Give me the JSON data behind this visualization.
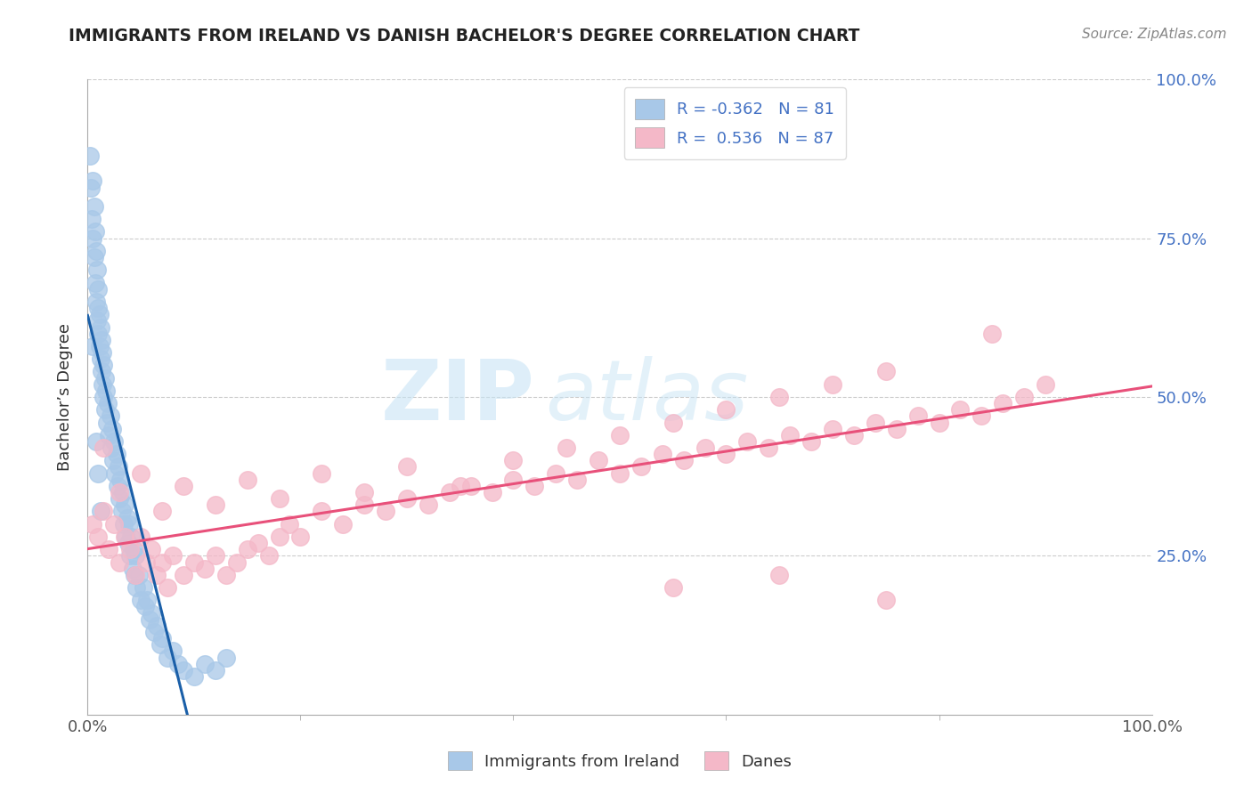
{
  "title": "IMMIGRANTS FROM IRELAND VS DANISH BACHELOR'S DEGREE CORRELATION CHART",
  "source_text": "Source: ZipAtlas.com",
  "ylabel": "Bachelor’s Degree",
  "watermark_zip": "ZIP",
  "watermark_atlas": "atlas",
  "blue_r": -0.362,
  "blue_n": 81,
  "pink_r": 0.536,
  "pink_n": 87,
  "blue_color": "#a8c8e8",
  "pink_color": "#f4b8c8",
  "blue_line_color": "#1a5fa8",
  "pink_line_color": "#e8507a",
  "background_color": "#ffffff",
  "grid_color": "#cccccc",
  "legend_text_color": "#4472c4",
  "source_color": "#888888",
  "title_color": "#222222",
  "bottom_legend_label1": "Immigrants from Ireland",
  "bottom_legend_label2": "Danes",
  "blue_scatter_x": [
    0.002,
    0.003,
    0.004,
    0.005,
    0.005,
    0.006,
    0.006,
    0.007,
    0.007,
    0.008,
    0.008,
    0.009,
    0.009,
    0.01,
    0.01,
    0.01,
    0.011,
    0.011,
    0.012,
    0.012,
    0.013,
    0.013,
    0.014,
    0.014,
    0.015,
    0.015,
    0.016,
    0.016,
    0.017,
    0.018,
    0.019,
    0.02,
    0.021,
    0.022,
    0.023,
    0.024,
    0.025,
    0.026,
    0.027,
    0.028,
    0.029,
    0.03,
    0.031,
    0.032,
    0.033,
    0.034,
    0.035,
    0.036,
    0.037,
    0.038,
    0.039,
    0.04,
    0.041,
    0.042,
    0.043,
    0.044,
    0.045,
    0.046,
    0.048,
    0.05,
    0.052,
    0.054,
    0.056,
    0.058,
    0.06,
    0.062,
    0.065,
    0.068,
    0.07,
    0.075,
    0.08,
    0.085,
    0.09,
    0.1,
    0.11,
    0.12,
    0.13,
    0.005,
    0.008,
    0.01,
    0.012
  ],
  "blue_scatter_y": [
    0.88,
    0.83,
    0.78,
    0.84,
    0.75,
    0.8,
    0.72,
    0.76,
    0.68,
    0.73,
    0.65,
    0.7,
    0.62,
    0.67,
    0.64,
    0.6,
    0.63,
    0.58,
    0.61,
    0.56,
    0.59,
    0.54,
    0.57,
    0.52,
    0.55,
    0.5,
    0.53,
    0.48,
    0.51,
    0.46,
    0.49,
    0.44,
    0.47,
    0.42,
    0.45,
    0.4,
    0.43,
    0.38,
    0.41,
    0.36,
    0.39,
    0.34,
    0.37,
    0.32,
    0.35,
    0.3,
    0.33,
    0.28,
    0.31,
    0.27,
    0.3,
    0.25,
    0.28,
    0.23,
    0.26,
    0.22,
    0.25,
    0.2,
    0.22,
    0.18,
    0.2,
    0.17,
    0.18,
    0.15,
    0.16,
    0.13,
    0.14,
    0.11,
    0.12,
    0.09,
    0.1,
    0.08,
    0.07,
    0.06,
    0.08,
    0.07,
    0.09,
    0.58,
    0.43,
    0.38,
    0.32
  ],
  "pink_scatter_x": [
    0.005,
    0.01,
    0.015,
    0.02,
    0.025,
    0.03,
    0.035,
    0.04,
    0.045,
    0.05,
    0.055,
    0.06,
    0.065,
    0.07,
    0.075,
    0.08,
    0.09,
    0.1,
    0.11,
    0.12,
    0.13,
    0.14,
    0.15,
    0.16,
    0.17,
    0.18,
    0.19,
    0.2,
    0.22,
    0.24,
    0.26,
    0.28,
    0.3,
    0.32,
    0.34,
    0.36,
    0.38,
    0.4,
    0.42,
    0.44,
    0.46,
    0.48,
    0.5,
    0.52,
    0.54,
    0.56,
    0.58,
    0.6,
    0.62,
    0.64,
    0.66,
    0.68,
    0.7,
    0.72,
    0.74,
    0.76,
    0.78,
    0.8,
    0.82,
    0.84,
    0.86,
    0.88,
    0.9,
    0.015,
    0.03,
    0.05,
    0.07,
    0.09,
    0.12,
    0.15,
    0.18,
    0.22,
    0.26,
    0.3,
    0.35,
    0.4,
    0.45,
    0.5,
    0.55,
    0.6,
    0.65,
    0.7,
    0.75,
    0.55,
    0.65,
    0.75,
    0.85
  ],
  "pink_scatter_y": [
    0.3,
    0.28,
    0.32,
    0.26,
    0.3,
    0.24,
    0.28,
    0.26,
    0.22,
    0.28,
    0.24,
    0.26,
    0.22,
    0.24,
    0.2,
    0.25,
    0.22,
    0.24,
    0.23,
    0.25,
    0.22,
    0.24,
    0.26,
    0.27,
    0.25,
    0.28,
    0.3,
    0.28,
    0.32,
    0.3,
    0.33,
    0.32,
    0.34,
    0.33,
    0.35,
    0.36,
    0.35,
    0.37,
    0.36,
    0.38,
    0.37,
    0.4,
    0.38,
    0.39,
    0.41,
    0.4,
    0.42,
    0.41,
    0.43,
    0.42,
    0.44,
    0.43,
    0.45,
    0.44,
    0.46,
    0.45,
    0.47,
    0.46,
    0.48,
    0.47,
    0.49,
    0.5,
    0.52,
    0.42,
    0.35,
    0.38,
    0.32,
    0.36,
    0.33,
    0.37,
    0.34,
    0.38,
    0.35,
    0.39,
    0.36,
    0.4,
    0.42,
    0.44,
    0.46,
    0.48,
    0.5,
    0.52,
    0.54,
    0.2,
    0.22,
    0.18,
    0.6
  ]
}
